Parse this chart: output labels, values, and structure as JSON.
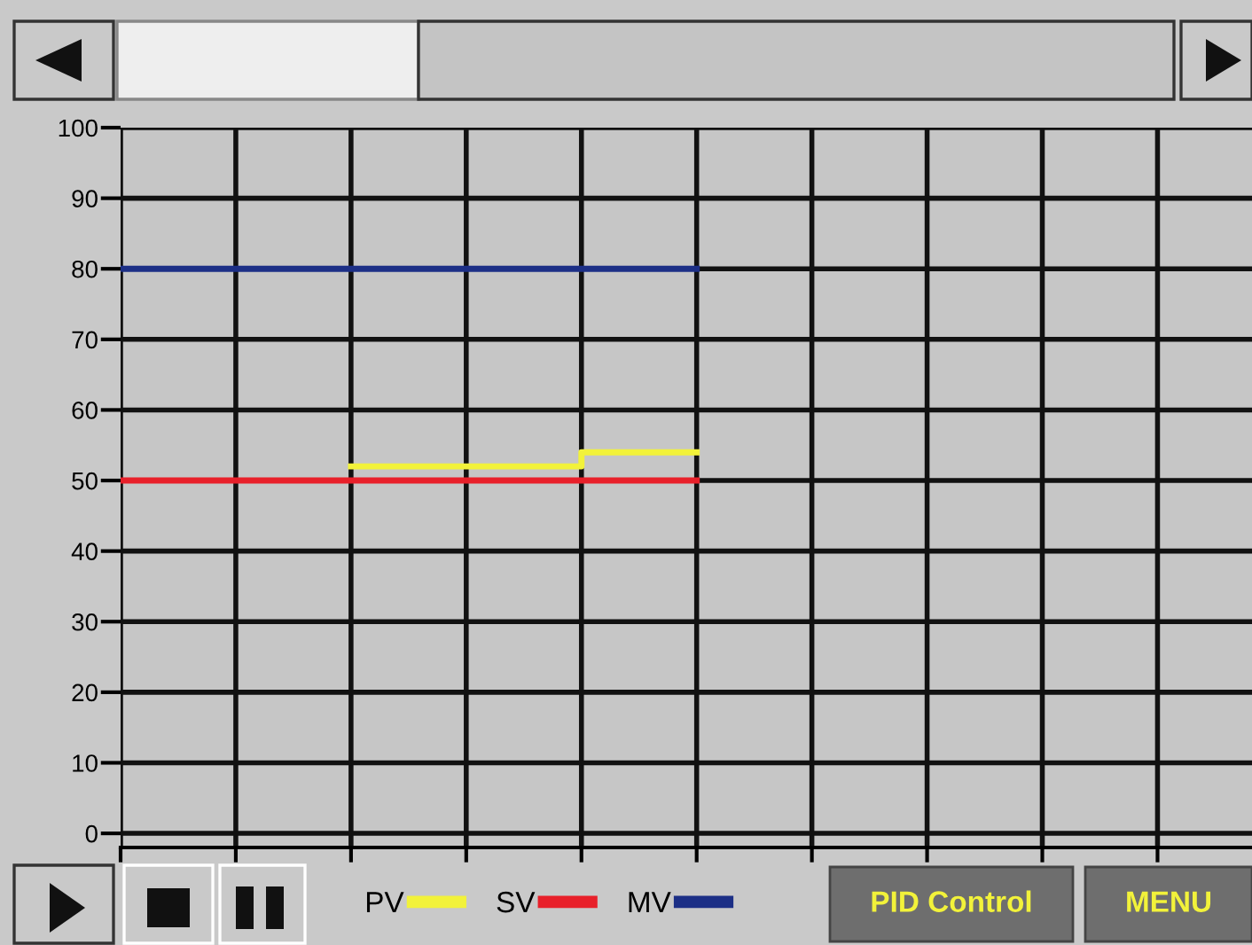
{
  "chart_data": {
    "type": "line",
    "categories": [
      null,
      null,
      null,
      null,
      null,
      null,
      null,
      null,
      null,
      null
    ],
    "series": [
      {
        "name": "PV",
        "color": "#f2f23a",
        "type": "step",
        "values": [
          null,
          null,
          52,
          52,
          54,
          54,
          null,
          null,
          null,
          null
        ]
      },
      {
        "name": "SV",
        "color": "#e8202a",
        "values": [
          50,
          50,
          50,
          50,
          50,
          50,
          null,
          null,
          null,
          null
        ]
      },
      {
        "name": "MV",
        "color": "#1c2f86",
        "values": [
          80,
          80,
          80,
          80,
          80,
          80,
          null,
          null,
          null,
          null
        ]
      }
    ],
    "ylim": [
      -2,
      100
    ],
    "yticks": [
      0,
      10,
      20,
      30,
      40,
      50,
      60,
      70,
      80,
      90,
      100
    ],
    "grid": true,
    "legend": "bottom",
    "marker": "none",
    "line_style": "solid",
    "annotations": [
      "PID Control",
      "MENU"
    ]
  }
}
